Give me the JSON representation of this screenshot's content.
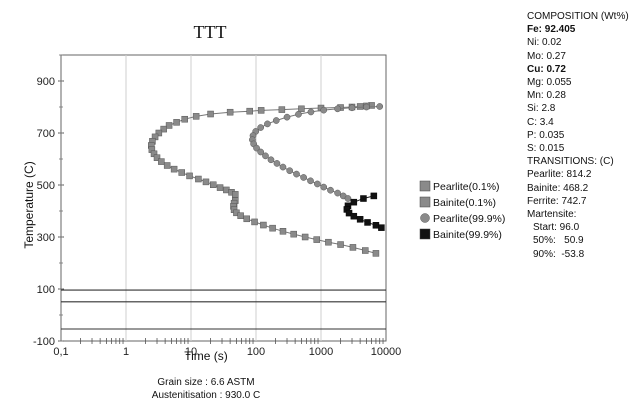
{
  "chart_data": {
    "type": "line",
    "title": "TTT",
    "xlabel": "Time (s)",
    "ylabel": "Temperature (C)",
    "xscale": "log",
    "xlim": [
      0.1,
      10000
    ],
    "ylim": [
      -100,
      1000
    ],
    "x_ticks": [
      "0,1",
      "1",
      "10",
      "100",
      "1000",
      "10000"
    ],
    "y_ticks": [
      "-100",
      "100",
      "300",
      "500",
      "700",
      "900"
    ],
    "grid": true,
    "legend_position": "right",
    "series": [
      {
        "name": "Pearlite(0.1%)",
        "marker": "square",
        "color": "#8a8a8a",
        "points": [
          [
            6000,
            806
          ],
          [
            5000,
            804
          ],
          [
            4000,
            802
          ],
          [
            3000,
            800
          ],
          [
            2000,
            798
          ],
          [
            1000,
            796
          ],
          [
            500,
            793
          ],
          [
            250,
            790
          ],
          [
            120,
            787
          ],
          [
            80,
            784
          ],
          [
            40,
            780
          ],
          [
            20,
            773
          ],
          [
            12,
            764
          ],
          [
            8,
            753
          ],
          [
            6,
            741
          ],
          [
            4.6,
            729
          ],
          [
            3.8,
            715
          ],
          [
            3.2,
            700
          ],
          [
            2.8,
            685
          ],
          [
            2.55,
            668
          ],
          [
            2.45,
            652
          ],
          [
            2.5,
            636
          ],
          [
            2.7,
            620
          ],
          [
            3.0,
            605
          ],
          [
            3.5,
            590
          ],
          [
            4.3,
            575
          ],
          [
            5.5,
            561
          ],
          [
            7.2,
            548
          ],
          [
            9.5,
            535
          ],
          [
            13,
            523
          ],
          [
            17,
            512
          ],
          [
            22,
            501
          ],
          [
            28,
            490
          ],
          [
            35,
            481
          ],
          [
            42,
            472
          ],
          [
            48,
            464
          ]
        ]
      },
      {
        "name": "Bainite(0.1%)",
        "marker": "square",
        "color": "#8a8a8a",
        "points": [
          [
            48,
            440
          ],
          [
            46,
            430
          ],
          [
            45,
            418
          ],
          [
            46,
            405
          ],
          [
            50,
            393
          ],
          [
            58,
            382
          ],
          [
            72,
            370
          ],
          [
            95,
            358
          ],
          [
            130,
            346
          ],
          [
            180,
            334
          ],
          [
            260,
            322
          ],
          [
            380,
            311
          ],
          [
            570,
            300
          ],
          [
            860,
            290
          ],
          [
            1300,
            280
          ],
          [
            2000,
            271
          ],
          [
            3100,
            260
          ],
          [
            4800,
            248
          ],
          [
            7000,
            237
          ]
        ]
      },
      {
        "name": "Pearlite(99.9%)",
        "marker": "circle",
        "color": "#8a8a8a",
        "points": [
          [
            8000,
            802
          ],
          [
            5000,
            800
          ],
          [
            3000,
            797
          ],
          [
            1800,
            793
          ],
          [
            1100,
            788
          ],
          [
            700,
            781
          ],
          [
            450,
            772
          ],
          [
            300,
            761
          ],
          [
            205,
            748
          ],
          [
            150,
            735
          ],
          [
            118,
            721
          ],
          [
            99,
            706
          ],
          [
            90,
            690
          ],
          [
            88,
            674
          ],
          [
            92,
            658
          ],
          [
            102,
            642
          ],
          [
            118,
            627
          ],
          [
            140,
            612
          ],
          [
            170,
            597
          ],
          [
            210,
            583
          ],
          [
            260,
            569
          ],
          [
            330,
            555
          ],
          [
            420,
            542
          ],
          [
            540,
            529
          ],
          [
            690,
            516
          ],
          [
            880,
            504
          ],
          [
            1100,
            492
          ],
          [
            1400,
            480
          ],
          [
            1800,
            469
          ],
          [
            2200,
            458
          ],
          [
            2600,
            448
          ]
        ]
      },
      {
        "name": "Bainite(99.9%)",
        "marker": "square",
        "color": "#111111",
        "points": [
          [
            6500,
            458
          ],
          [
            4500,
            448
          ],
          [
            3200,
            434
          ],
          [
            2600,
            420
          ],
          [
            2500,
            406
          ],
          [
            2700,
            392
          ],
          [
            3200,
            380
          ],
          [
            4000,
            368
          ],
          [
            5200,
            356
          ],
          [
            7000,
            345
          ],
          [
            8500,
            336
          ]
        ]
      }
    ],
    "horizontal_lines": [
      {
        "label": "Martensite Start",
        "y": 96.0
      },
      {
        "label": "Martensite 50%",
        "y": 50.9
      },
      {
        "label": "Martensite 90%",
        "y": -53.8
      }
    ],
    "footer": {
      "grain_size": "Grain size : 6.6 ASTM",
      "austenitisation": "Austenitisation : 930.0 C"
    }
  },
  "composition": {
    "header": "COMPOSITION (Wt%)",
    "items": [
      "Fe: 92.405",
      "Ni: 0.02",
      "Mo: 0.27",
      "Cu: 0.72",
      "Mg: 0.055",
      "Mn: 0.28",
      "Si: 2.8",
      "C: 3.4",
      "P: 0.035",
      "S: 0.015"
    ]
  },
  "transitions": {
    "header": "TRANSITIONS: (C)",
    "items": [
      "Pearlite: 814.2",
      "Bainite: 468.2",
      "Ferrite: 742.7"
    ],
    "martensite_header": "Martensite:",
    "martensite": [
      "Start: 96.0",
      "50%:   50.9",
      "90%:  -53.8"
    ]
  }
}
